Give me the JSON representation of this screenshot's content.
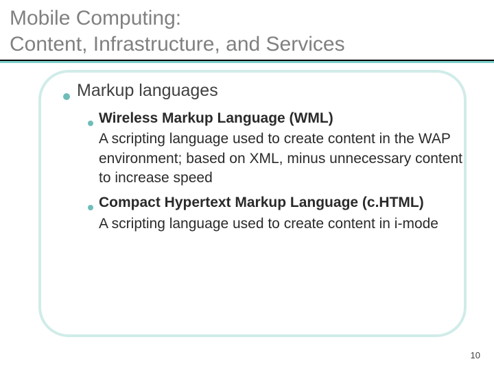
{
  "title": {
    "line1": "Mobile Computing:",
    "line2": "Content, Infrastructure, and Services"
  },
  "colors": {
    "title_text": "#808080",
    "title_underline": "#000000",
    "accent_line": "#7bcfc9",
    "bullet": "#6fbdb8",
    "frame_border": "#d0ece9",
    "body_text": "#2a2a2a",
    "background": "#ffffff"
  },
  "heading": "Markup languages",
  "items": [
    {
      "title": "Wireless Markup Language (WML)",
      "body": "A scripting language used to create content in the WAP environment; based on XML, minus unnecessary content to increase speed"
    },
    {
      "title": "Compact Hypertext Markup Language (c.HTML)",
      "body": "A scripting language used to create content in i-mode"
    }
  ],
  "page_number": "10"
}
